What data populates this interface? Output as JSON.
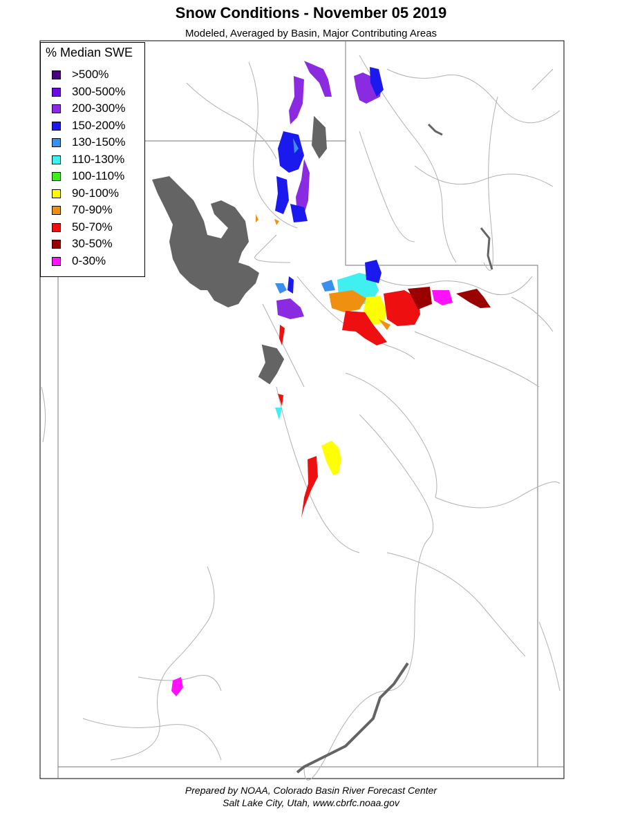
{
  "title": "Snow Conditions - November 05 2019",
  "subtitle": "Modeled, Averaged by Basin, Major Contributing Areas",
  "legend": {
    "title": "% Median SWE",
    "items": [
      {
        "label": ">500%",
        "color": "#4b0082"
      },
      {
        "label": "300-500%",
        "color": "#6a0dde"
      },
      {
        "label": "200-300%",
        "color": "#8a2be2"
      },
      {
        "label": "150-200%",
        "color": "#1a1aee"
      },
      {
        "label": "130-150%",
        "color": "#3a8eee"
      },
      {
        "label": "110-130%",
        "color": "#40f0f0"
      },
      {
        "label": "100-110%",
        "color": "#40ee20"
      },
      {
        "label": "90-100%",
        "color": "#ffff00"
      },
      {
        "label": "70-90%",
        "color": "#f09010"
      },
      {
        "label": "50-70%",
        "color": "#ee1010"
      },
      {
        "label": "30-50%",
        "color": "#990000"
      },
      {
        "label": "0-30%",
        "color": "#ff10ff"
      }
    ]
  },
  "footer": {
    "line1": "Prepared by NOAA, Colorado Basin River Forecast Center",
    "line2": "Salt Lake City, Utah, www.cbrfc.noaa.gov"
  },
  "colors": {
    "lake": "#646464",
    "boundary": "#000000",
    "river": "#a0a0a0"
  }
}
